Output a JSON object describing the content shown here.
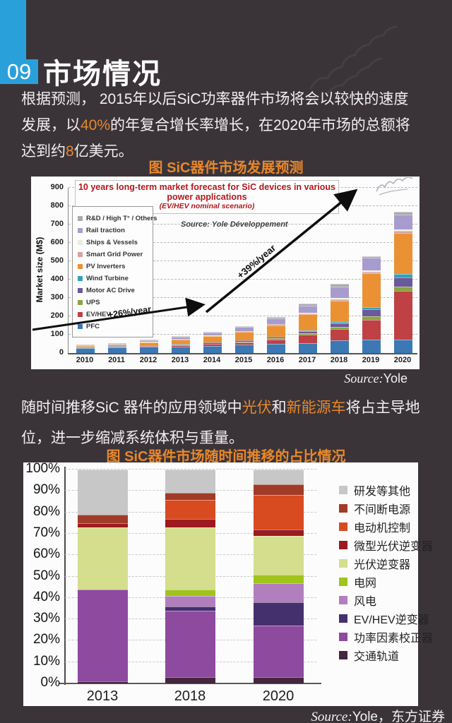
{
  "page": {
    "number": "09",
    "title": "市场情况",
    "intro": {
      "lines": [
        [
          {
            "t": "根据预测， 2015年以后SiC功率器件市场将会以较快的速度"
          }
        ],
        [
          {
            "t": "发展，以"
          },
          {
            "t": "40%",
            "hl": true
          },
          {
            "t": "的年复合增长率增长，在2020年市场的总额将"
          }
        ],
        [
          {
            "t": "达到约"
          },
          {
            "t": "8",
            "hl": true
          },
          {
            "t": "亿美元。"
          }
        ]
      ]
    },
    "para2": {
      "lines": [
        [
          {
            "t": "随时间推移SiC 器件的应用领域中"
          },
          {
            "t": "光伏",
            "hl": true
          },
          {
            "t": "和"
          },
          {
            "t": "新能源车",
            "hl": true
          },
          {
            "t": "将占主导地"
          }
        ],
        [
          {
            "t": "位，进一步缩减系统体积与重量。"
          }
        ]
      ]
    },
    "chart1_caption": "图 SiC器件市场发展预测",
    "chart2_caption": "图 SiC器件市场随时间推移的占比情况",
    "source_note_1": {
      "prefix": "Source:",
      "text": "Yole"
    },
    "source_note_2": {
      "prefix": "Source:",
      "text": "Yole，东方证券"
    }
  },
  "colors": {
    "background": "#3a3439",
    "accent_orange": "#e8872b",
    "accent_blue": "#2aa0da",
    "chart1_title_red": "#b2181e"
  },
  "chart_data": [
    {
      "type": "bar",
      "stacked": true,
      "title": "10 years long-term market forecast for SiC devices in various power applications",
      "subtitle": "(EV/HEV nominal scenario)",
      "source": "Source: Yole Développement",
      "ylabel": "Market size (M$)",
      "ylim": [
        0,
        900
      ],
      "yticks": [
        "0",
        "100",
        "200",
        "300",
        "400",
        "500",
        "600",
        "700",
        "800",
        "900"
      ],
      "grid": "dashed-horizontal",
      "legend_position": "inside-left",
      "categories": [
        "2010",
        "2011",
        "2012",
        "2013",
        "2014",
        "2015",
        "2016",
        "2017",
        "2018",
        "2019",
        "2020"
      ],
      "series": [
        {
          "name": "PFC",
          "color": "#3c78b4",
          "values": [
            26,
            30,
            33,
            36,
            40,
            46,
            50,
            55,
            70,
            72,
            75
          ]
        },
        {
          "name": "EV/HEV",
          "color": "#bf4045",
          "values": [
            2,
            3,
            5,
            8,
            10,
            13,
            25,
            45,
            60,
            108,
            265
          ]
        },
        {
          "name": "UPS",
          "color": "#8aa43c",
          "values": [
            1,
            1,
            1,
            2,
            2,
            3,
            4,
            6,
            12,
            19,
            20
          ]
        },
        {
          "name": "Motor AC Drive",
          "color": "#6a5a9c",
          "values": [
            2,
            2,
            3,
            4,
            5,
            6,
            8,
            12,
            18,
            38,
            50
          ]
        },
        {
          "name": "Wind Turbine",
          "color": "#35a1b8",
          "values": [
            1,
            1,
            1,
            1,
            2,
            2,
            3,
            5,
            8,
            15,
            19
          ]
        },
        {
          "name": "PV Inverters",
          "color": "#ea9233",
          "values": [
            6,
            8,
            15,
            24,
            33,
            45,
            62,
            88,
            118,
            181,
            226
          ]
        },
        {
          "name": "Smart Grid Power",
          "color": "#d4a3a3",
          "values": [
            1,
            1,
            1,
            2,
            2,
            3,
            4,
            5,
            8,
            10,
            10
          ]
        },
        {
          "name": "Ships & Vessels",
          "color": "#e9eed9",
          "values": [
            1,
            1,
            1,
            2,
            2,
            3,
            3,
            4,
            6,
            8,
            10
          ]
        },
        {
          "name": "Rail traction",
          "color": "#a89cce",
          "values": [
            4,
            5,
            8,
            10,
            15,
            22,
            30,
            38,
            60,
            68,
            78
          ]
        },
        {
          "name": "R&D / High T° / Others",
          "color": "#ababab",
          "values": [
            2,
            3,
            4,
            4,
            5,
            5,
            8,
            10,
            17,
            10,
            17
          ]
        }
      ],
      "annotations": [
        "+26%/year",
        "+39%/year"
      ],
      "totals": [
        46,
        55,
        72,
        93,
        116,
        148,
        197,
        268,
        377,
        529,
        770
      ]
    },
    {
      "type": "bar",
      "stacked": true,
      "percent": true,
      "ylim": [
        0,
        100
      ],
      "yticks": [
        "0%",
        "10%",
        "20%",
        "30%",
        "40%",
        "50%",
        "60%",
        "70%",
        "80%",
        "90%",
        "100%"
      ],
      "grid": "dashed-horizontal",
      "legend_position": "right",
      "categories": [
        "2013",
        "2018",
        "2020"
      ],
      "series": [
        {
          "name": "交通轨道",
          "color": "#44263e",
          "values": [
            1,
            3,
            3
          ]
        },
        {
          "name": "功率因素校正器",
          "color": "#8d4a9e",
          "values": [
            43,
            31,
            24
          ]
        },
        {
          "name": "EV/HEV逆变器",
          "color": "#45306e",
          "values": [
            0,
            2,
            11
          ]
        },
        {
          "name": "风电",
          "color": "#b27fbe",
          "values": [
            0,
            5,
            9
          ]
        },
        {
          "name": "电网",
          "color": "#9fc41c",
          "values": [
            0,
            3,
            4
          ]
        },
        {
          "name": "光伏逆变器",
          "color": "#d5de8d",
          "values": [
            29,
            29,
            18
          ]
        },
        {
          "name": "微型光伏逆变器",
          "color": "#9c1a20",
          "values": [
            2,
            4,
            3
          ]
        },
        {
          "name": "电动机控制",
          "color": "#d84b20",
          "values": [
            0,
            9,
            16
          ]
        },
        {
          "name": "不间断电源",
          "color": "#a03b28",
          "values": [
            4,
            3,
            5
          ]
        },
        {
          "name": "研发等其他",
          "color": "#c7c7c7",
          "values": [
            21,
            11,
            7
          ]
        }
      ]
    }
  ]
}
